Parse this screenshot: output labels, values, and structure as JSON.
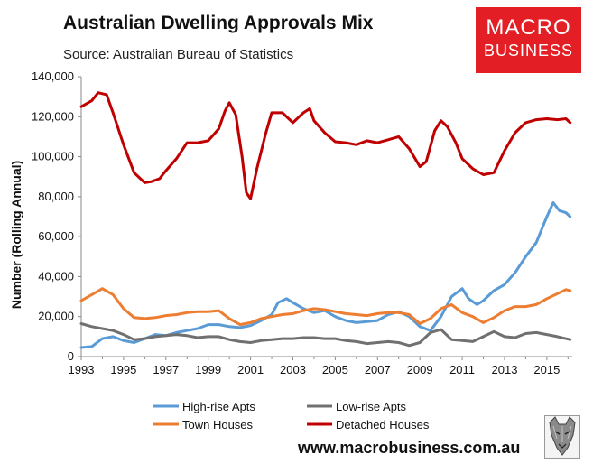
{
  "header": {
    "title": "Australian Dwelling Approvals Mix",
    "subtitle": "Source: Australian Bureau of Statistics"
  },
  "logo": {
    "line1": "MACRO",
    "line2": "BUSINESS"
  },
  "footer": {
    "url": "www.macrobusiness.com.au"
  },
  "colors": {
    "high_rise": "#5b9bd5",
    "low_rise": "#707070",
    "town_houses": "#ed7d31",
    "detached": "#c00000",
    "axis": "#888888",
    "brand": "#e31e24"
  },
  "chart_data": {
    "type": "line",
    "title": "Australian Dwelling Approvals Mix",
    "ylabel": "Number (Rolling Annual)",
    "xlabel": "",
    "ylim": [
      0,
      140000
    ],
    "xlim": [
      1993,
      2016.2
    ],
    "yticks": [
      0,
      20000,
      40000,
      60000,
      80000,
      100000,
      120000,
      140000
    ],
    "ytick_labels": [
      "0",
      "20,000",
      "40,000",
      "60,000",
      "80,000",
      "100,000",
      "120,000",
      "140,000"
    ],
    "xticks": [
      1993,
      1995,
      1997,
      1999,
      2001,
      2003,
      2005,
      2007,
      2009,
      2011,
      2013,
      2015
    ],
    "xtick_labels": [
      "1993",
      "1995",
      "1997",
      "1999",
      "2001",
      "2003",
      "2005",
      "2007",
      "2009",
      "2011",
      "2013",
      "2015"
    ],
    "grid": false,
    "legend": "bottom",
    "series": [
      {
        "name": "High-rise Apts",
        "color_key": "high_rise",
        "x": [
          1993.0,
          1993.5,
          1994.0,
          1994.5,
          1995.0,
          1995.5,
          1996.0,
          1996.5,
          1997.0,
          1997.5,
          1998.0,
          1998.5,
          1999.0,
          1999.5,
          2000.0,
          2000.5,
          2001.0,
          2001.5,
          2002.0,
          2002.3,
          2002.7,
          2003.0,
          2003.5,
          2004.0,
          2004.5,
          2005.0,
          2005.5,
          2006.0,
          2006.5,
          2007.0,
          2007.5,
          2008.0,
          2008.5,
          2009.0,
          2009.5,
          2010.0,
          2010.5,
          2011.0,
          2011.3,
          2011.7,
          2012.0,
          2012.5,
          2013.0,
          2013.5,
          2014.0,
          2014.5,
          2015.0,
          2015.3,
          2015.6,
          2015.9,
          2016.1
        ],
        "values": [
          4500,
          5000,
          9000,
          10000,
          8000,
          7000,
          9000,
          11000,
          10500,
          12000,
          13000,
          14000,
          16000,
          16000,
          15000,
          14500,
          15500,
          18000,
          21000,
          27000,
          29000,
          27000,
          24000,
          22000,
          23000,
          20000,
          18000,
          17000,
          17500,
          18000,
          21000,
          22500,
          20000,
          15000,
          13000,
          20000,
          30000,
          34000,
          29000,
          26000,
          28000,
          33000,
          36000,
          42000,
          50000,
          57000,
          70000,
          77000,
          73000,
          72000,
          70000
        ]
      },
      {
        "name": "Low-rise Apts",
        "color_key": "low_rise",
        "x": [
          1993.0,
          1993.5,
          1994.0,
          1994.5,
          1995.0,
          1995.5,
          1996.0,
          1996.5,
          1997.0,
          1997.5,
          1998.0,
          1998.5,
          1999.0,
          1999.5,
          2000.0,
          2000.5,
          2001.0,
          2001.5,
          2002.0,
          2002.5,
          2003.0,
          2003.5,
          2004.0,
          2004.5,
          2005.0,
          2005.5,
          2006.0,
          2006.5,
          2007.0,
          2007.5,
          2008.0,
          2008.5,
          2009.0,
          2009.5,
          2010.0,
          2010.5,
          2011.0,
          2011.5,
          2012.0,
          2012.5,
          2013.0,
          2013.5,
          2014.0,
          2014.5,
          2015.0,
          2015.5,
          2016.1
        ],
        "values": [
          16500,
          15000,
          14000,
          13000,
          11000,
          8500,
          9000,
          10000,
          10500,
          11000,
          10500,
          9500,
          10000,
          10000,
          8500,
          7500,
          7000,
          8000,
          8500,
          9000,
          9000,
          9500,
          9500,
          9000,
          9000,
          8000,
          7500,
          6500,
          7000,
          7500,
          7000,
          5500,
          7000,
          12000,
          13500,
          8500,
          8000,
          7500,
          10000,
          12500,
          10000,
          9500,
          11500,
          12000,
          11000,
          10000,
          8500
        ]
      },
      {
        "name": "Town Houses",
        "color_key": "town_houses",
        "x": [
          1993.0,
          1993.5,
          1994.0,
          1994.5,
          1995.0,
          1995.5,
          1996.0,
          1996.5,
          1997.0,
          1997.5,
          1998.0,
          1998.5,
          1999.0,
          1999.5,
          2000.0,
          2000.5,
          2001.0,
          2001.5,
          2002.0,
          2002.5,
          2003.0,
          2003.5,
          2004.0,
          2004.5,
          2005.0,
          2005.5,
          2006.0,
          2006.5,
          2007.0,
          2007.5,
          2008.0,
          2008.5,
          2009.0,
          2009.5,
          2010.0,
          2010.5,
          2011.0,
          2011.5,
          2012.0,
          2012.5,
          2013.0,
          2013.5,
          2014.0,
          2014.5,
          2015.0,
          2015.5,
          2015.9,
          2016.1
        ],
        "values": [
          28000,
          31000,
          34000,
          31000,
          24000,
          19500,
          19000,
          19500,
          20500,
          21000,
          22000,
          22500,
          22500,
          23000,
          19000,
          16000,
          17000,
          19000,
          20000,
          21000,
          21500,
          23000,
          24000,
          23500,
          22500,
          21500,
          21000,
          20500,
          21500,
          22000,
          22000,
          21000,
          16500,
          19000,
          24000,
          26000,
          22000,
          20000,
          17000,
          19500,
          23000,
          25000,
          25000,
          26000,
          29000,
          31500,
          33500,
          33000
        ]
      },
      {
        "name": "Detached Houses",
        "color_key": "detached",
        "x": [
          1993.0,
          1993.5,
          1993.8,
          1994.2,
          1994.5,
          1995.0,
          1995.5,
          1996.0,
          1996.3,
          1996.7,
          1997.0,
          1997.5,
          1998.0,
          1998.5,
          1999.0,
          1999.5,
          1999.8,
          2000.0,
          2000.3,
          2000.6,
          2000.8,
          2001.0,
          2001.3,
          2001.7,
          2002.0,
          2002.5,
          2003.0,
          2003.5,
          2003.8,
          2004.0,
          2004.5,
          2005.0,
          2005.5,
          2006.0,
          2006.5,
          2007.0,
          2007.5,
          2008.0,
          2008.5,
          2009.0,
          2009.3,
          2009.7,
          2010.0,
          2010.3,
          2010.7,
          2011.0,
          2011.5,
          2012.0,
          2012.5,
          2013.0,
          2013.5,
          2014.0,
          2014.5,
          2015.0,
          2015.5,
          2015.9,
          2016.1
        ],
        "values": [
          125000,
          128000,
          132000,
          131000,
          122000,
          106000,
          92000,
          87000,
          87500,
          89000,
          93000,
          99000,
          107000,
          107000,
          108000,
          114000,
          123000,
          127000,
          121000,
          100000,
          82000,
          79000,
          94000,
          111000,
          122000,
          122000,
          117000,
          122000,
          124000,
          118000,
          112000,
          107500,
          107000,
          106000,
          108000,
          107000,
          108500,
          110000,
          104000,
          95000,
          97500,
          113000,
          118000,
          115000,
          107000,
          99000,
          94000,
          91000,
          92000,
          103000,
          112000,
          117000,
          118500,
          119000,
          118500,
          119000,
          117000
        ]
      }
    ]
  }
}
